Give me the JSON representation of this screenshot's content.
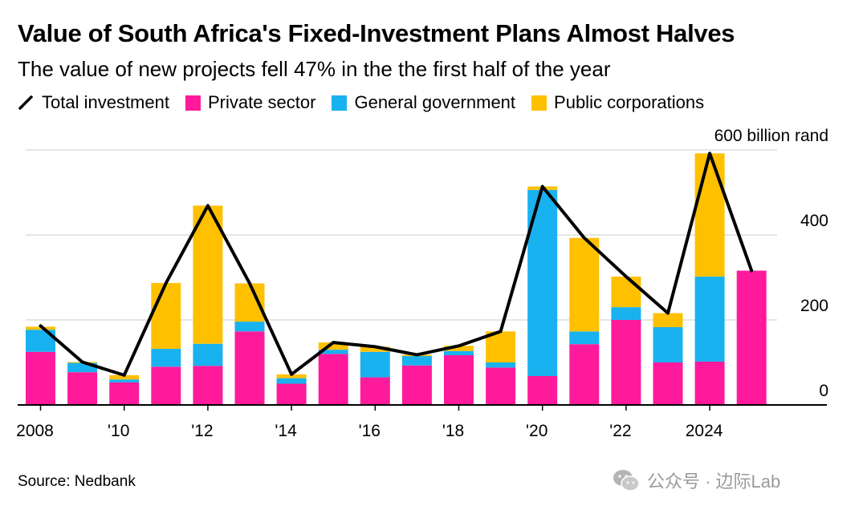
{
  "title": "Value of South Africa's Fixed-Investment Plans Almost Halves",
  "subtitle": "The value of new projects fell 47% in the the first half of the year",
  "source": "Source: Nedbank",
  "watermark": "公众号 · 边际Lab",
  "colors": {
    "private": "#ff1a9c",
    "government": "#19b2f0",
    "public_corp": "#ffc000",
    "total_line": "#000000",
    "grid": "#dcdcdc",
    "axis": "#000000"
  },
  "chart_data": {
    "type": "bar",
    "stacked": true,
    "unit": "billion rand",
    "top_tick_label": "600 billion rand",
    "ylim": [
      0,
      600
    ],
    "y_ticks": [
      0,
      200,
      400,
      600
    ],
    "x_ticks": [
      {
        "year": 2008,
        "label": "2008"
      },
      {
        "year": 2010,
        "label": "'10"
      },
      {
        "year": 2012,
        "label": "'12"
      },
      {
        "year": 2014,
        "label": "'14"
      },
      {
        "year": 2016,
        "label": "'16"
      },
      {
        "year": 2018,
        "label": "'18"
      },
      {
        "year": 2020,
        "label": "'20"
      },
      {
        "year": 2022,
        "label": "'22"
      },
      {
        "year": 2024,
        "label": "2024"
      }
    ],
    "years": [
      2008,
      2009,
      2010,
      2011,
      2012,
      2013,
      2014,
      2015,
      2016,
      2017,
      2018,
      2019,
      2020,
      2021,
      2022,
      2023,
      2024,
      2025
    ],
    "series": [
      {
        "name": "Private sector",
        "key": "private",
        "values": [
          125,
          77,
          53,
          90,
          92,
          173,
          50,
          120,
          65,
          93,
          117,
          88,
          68,
          143,
          200,
          100,
          102,
          316
        ]
      },
      {
        "name": "General government",
        "key": "government",
        "values": [
          52,
          22,
          7,
          42,
          52,
          23,
          13,
          10,
          60,
          22,
          10,
          12,
          438,
          30,
          30,
          83,
          200,
          0
        ]
      },
      {
        "name": "Public corporations",
        "key": "public_corp",
        "values": [
          7,
          2,
          10,
          155,
          325,
          90,
          9,
          17,
          12,
          3,
          12,
          73,
          8,
          220,
          72,
          33,
          290,
          0
        ]
      },
      {
        "name": "Total investment",
        "key": "total",
        "type": "line",
        "values": [
          186,
          101,
          70,
          287,
          469,
          286,
          72,
          147,
          137,
          118,
          139,
          173,
          514,
          393,
          302,
          216,
          592,
          316
        ]
      }
    ],
    "legend": [
      {
        "label": "Total investment",
        "key": "total"
      },
      {
        "label": "Private sector",
        "key": "private"
      },
      {
        "label": "General government",
        "key": "government"
      },
      {
        "label": "Public corporations",
        "key": "public_corp"
      }
    ],
    "grid": true,
    "legend_position": "top-left"
  }
}
